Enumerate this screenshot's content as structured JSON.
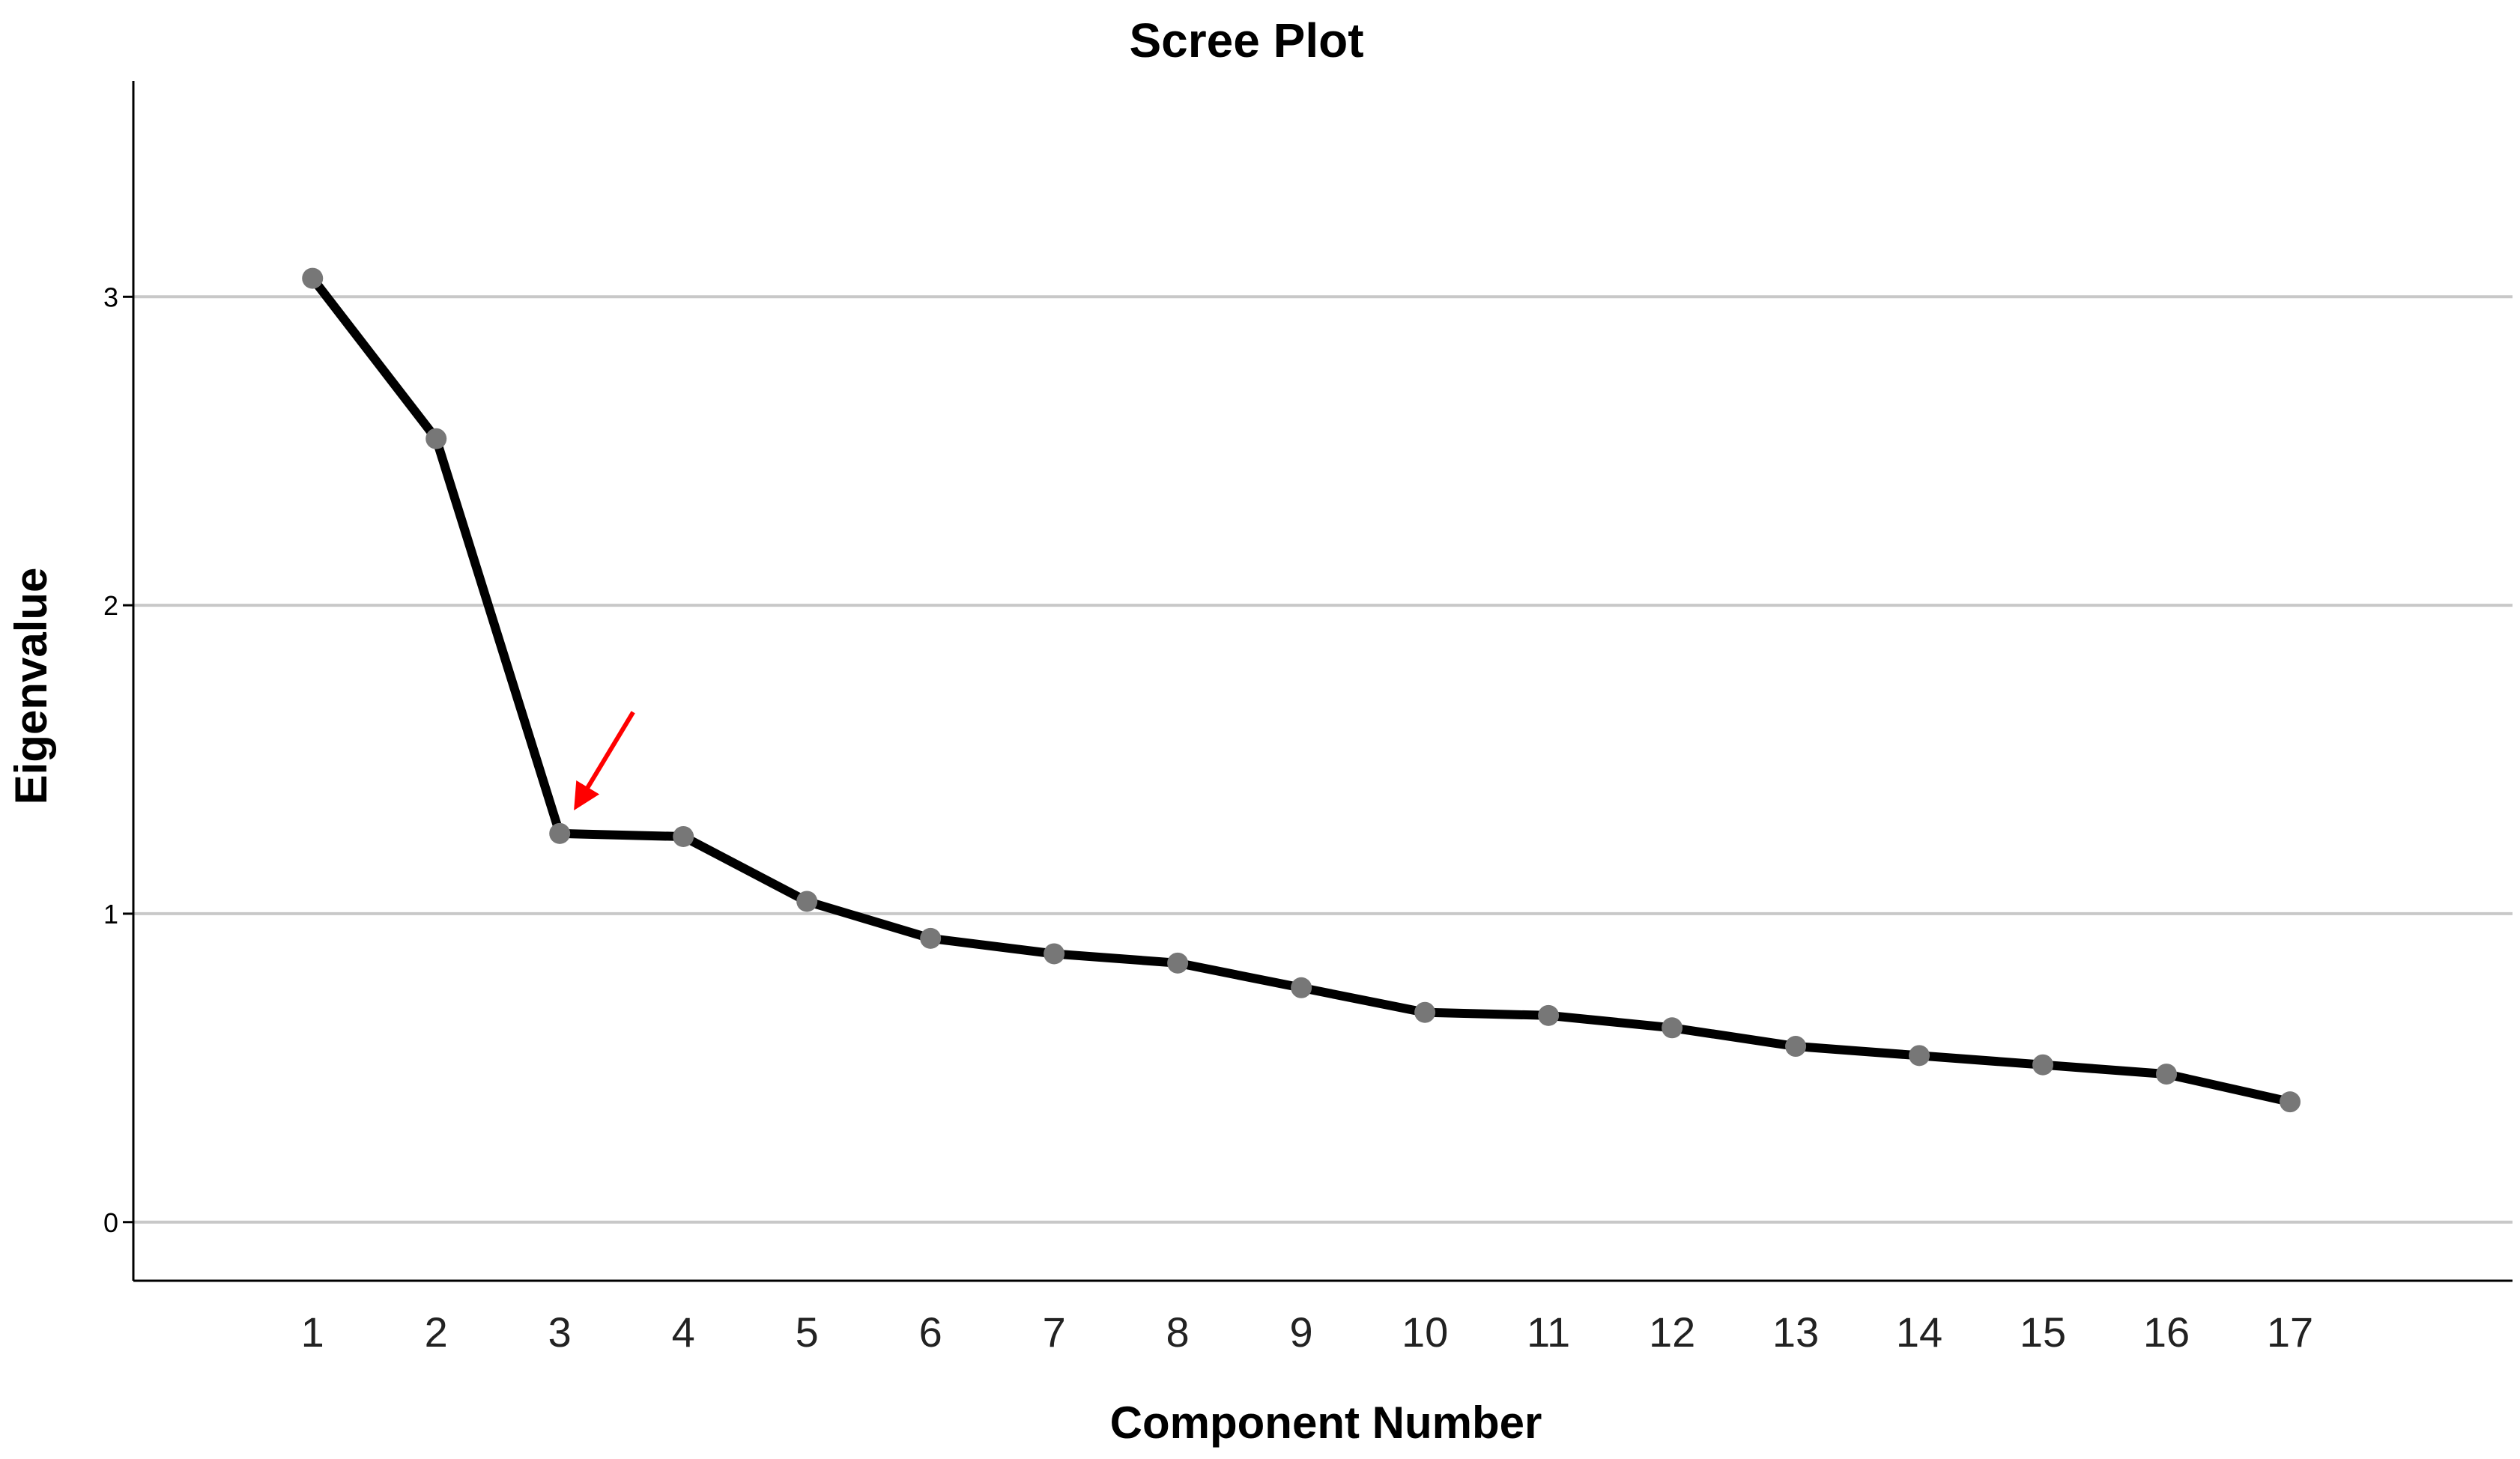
{
  "chart_data": {
    "type": "line",
    "title": "Scree Plot",
    "xlabel": "Component Number",
    "ylabel": "Eigenvalue",
    "x": [
      1,
      2,
      3,
      4,
      5,
      6,
      7,
      8,
      9,
      10,
      11,
      12,
      13,
      14,
      15,
      16,
      17
    ],
    "values": [
      3.06,
      2.54,
      1.26,
      1.25,
      1.04,
      0.92,
      0.87,
      0.84,
      0.76,
      0.68,
      0.67,
      0.63,
      0.57,
      0.54,
      0.51,
      0.48,
      0.39
    ],
    "x_ticks": [
      "1",
      "2",
      "3",
      "4",
      "5",
      "6",
      "7",
      "8",
      "9",
      "10",
      "11",
      "12",
      "13",
      "14",
      "15",
      "16",
      "17"
    ],
    "y_ticks": [
      "0",
      "1",
      "2",
      "3"
    ],
    "y_tick_values": [
      0,
      1,
      2,
      3
    ],
    "ylim": [
      -0.19,
      3.7
    ],
    "xlim": [
      -0.45,
      18.8
    ],
    "grid": "horizontal",
    "legend": "none",
    "annotation": {
      "type": "arrow",
      "target_x": 3,
      "target_y": 1.26,
      "color": "#ff0000"
    },
    "colors": {
      "line": "#000000",
      "marker": "#777777",
      "grid": "#c8c8c8",
      "axis": "#000000",
      "annotation": "#ff0000"
    }
  }
}
